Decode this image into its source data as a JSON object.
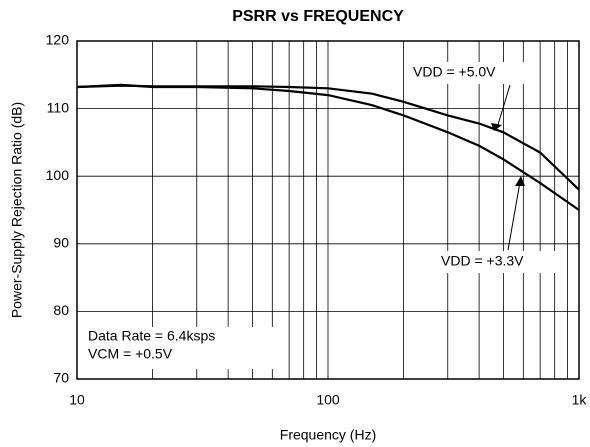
{
  "chart_data": {
    "type": "line",
    "title": "PSRR vs FREQUENCY",
    "x_label": "Frequency (Hz)",
    "y_label": "Power-Supply Rejection Ratio (dB)",
    "x_scale": "log",
    "xlim": [
      10,
      1000
    ],
    "ylim": [
      70,
      120
    ],
    "xticks": [
      10,
      100,
      {
        "value": 1000,
        "label": "1k"
      }
    ],
    "xgrid_minor": [
      20,
      30,
      40,
      50,
      60,
      70,
      80,
      90,
      200,
      300,
      400,
      500,
      600,
      700,
      800,
      900
    ],
    "yticks": [
      70,
      80,
      90,
      100,
      110,
      120
    ],
    "grid": true,
    "x": [
      10,
      15,
      20,
      30,
      50,
      70,
      100,
      150,
      200,
      300,
      400,
      500,
      700,
      1000
    ],
    "series": [
      {
        "name": "VDD = +5.0V",
        "color": "#000000",
        "values": [
          113.2,
          113.4,
          113.3,
          113.3,
          113.3,
          113.2,
          113.0,
          112.2,
          111.0,
          109.0,
          107.8,
          106.5,
          103.5,
          98.0
        ]
      },
      {
        "name": "VDD = +3.3V",
        "color": "#000000",
        "values": [
          113.2,
          113.5,
          113.2,
          113.2,
          113.0,
          112.6,
          112.0,
          110.5,
          109.0,
          106.5,
          104.5,
          102.5,
          99.0,
          95.0
        ]
      }
    ],
    "annotations": [
      "Data Rate = 6.4ksps",
      "VCM = +0.5V"
    ]
  }
}
